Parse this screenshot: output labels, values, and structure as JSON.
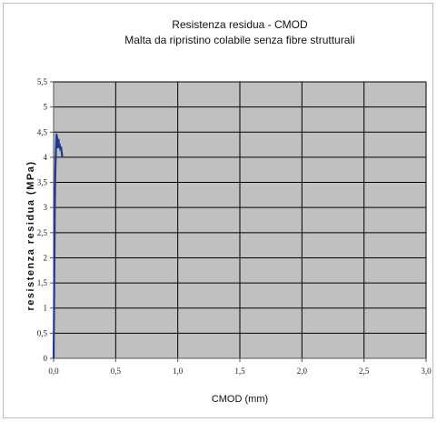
{
  "chart_data": {
    "type": "line",
    "title": "Resistenza residua - CMOD",
    "subtitle": "Malta da ripristino colabile senza fibre strutturali",
    "xlabel": "CMOD (mm)",
    "ylabel": "resistenza residua (MPa)",
    "xlim": [
      0,
      3.0
    ],
    "ylim": [
      0,
      5.5
    ],
    "x_ticks": [
      0,
      0.5,
      1.0,
      1.5,
      2.0,
      2.5,
      3.0
    ],
    "x_tick_labels": [
      "0,0",
      "0,5",
      "1,0",
      "1,5",
      "2,0",
      "2,5",
      "3,0"
    ],
    "y_ticks": [
      0,
      0.5,
      1,
      1.5,
      2,
      2.5,
      3,
      3.5,
      4,
      4.5,
      5,
      5.5
    ],
    "y_tick_labels": [
      "0",
      "0,5",
      "1",
      "1,5",
      "2",
      "2,5",
      "3",
      "3,5",
      "4",
      "4,5",
      "5",
      "5,5"
    ],
    "grid": true,
    "plot_background": "#c0c0c0",
    "grid_color": "#000000",
    "series": [
      {
        "color": "#1f3a93",
        "x": [
          0.0,
          0.003,
          0.006,
          0.009,
          0.012,
          0.015,
          0.018,
          0.021,
          0.024,
          0.027,
          0.03,
          0.033,
          0.036,
          0.04,
          0.045,
          0.05,
          0.055,
          0.06,
          0.065,
          0.07
        ],
        "y": [
          0.0,
          0.8,
          1.8,
          2.8,
          3.4,
          3.8,
          4.1,
          4.3,
          4.45,
          4.4,
          4.35,
          4.2,
          4.3,
          4.35,
          4.2,
          4.25,
          4.15,
          4.2,
          4.1,
          4.0
        ]
      }
    ]
  }
}
